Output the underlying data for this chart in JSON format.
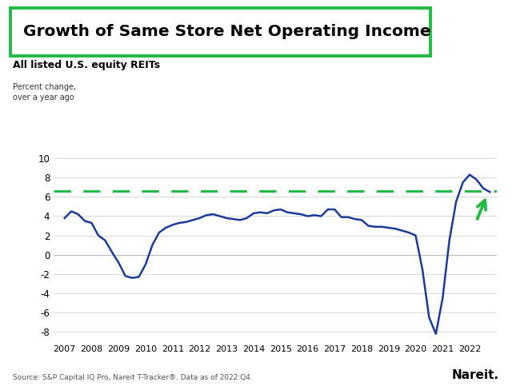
{
  "title": "Growth of Same Store Net Operating Income",
  "subtitle": "All listed U.S. equity REITs",
  "ylabel_line1": "Percent change,",
  "ylabel_line2": "over a year ago",
  "source": "Source: S&P Capital IQ Pro, Nareit T-Tracker®. Data as of 2022:Q4.",
  "nareit_label": "Nareit.",
  "dashed_line_y": 6.6,
  "ylim": [
    -9,
    11
  ],
  "yticks": [
    -8,
    -6,
    -4,
    -2,
    0,
    2,
    4,
    6,
    8,
    10
  ],
  "title_box_color": "#22bb44",
  "line_color": "#1a3a9e",
  "dashed_color": "#22bb44",
  "arrow_color": "#22bb44",
  "background_color": "#ffffff",
  "x_data": [
    2007.0,
    2007.25,
    2007.5,
    2007.75,
    2008.0,
    2008.25,
    2008.5,
    2008.75,
    2009.0,
    2009.25,
    2009.5,
    2009.75,
    2010.0,
    2010.25,
    2010.5,
    2010.75,
    2011.0,
    2011.25,
    2011.5,
    2011.75,
    2012.0,
    2012.25,
    2012.5,
    2012.75,
    2013.0,
    2013.25,
    2013.5,
    2013.75,
    2014.0,
    2014.25,
    2014.5,
    2014.75,
    2015.0,
    2015.25,
    2015.5,
    2015.75,
    2016.0,
    2016.25,
    2016.5,
    2016.75,
    2017.0,
    2017.25,
    2017.5,
    2017.75,
    2018.0,
    2018.25,
    2018.5,
    2018.75,
    2019.0,
    2019.25,
    2019.5,
    2019.75,
    2020.0,
    2020.25,
    2020.5,
    2020.75,
    2021.0,
    2021.25,
    2021.5,
    2021.75,
    2022.0,
    2022.25,
    2022.5,
    2022.75
  ],
  "y_data": [
    3.8,
    4.5,
    4.2,
    3.5,
    3.3,
    2.0,
    1.5,
    0.3,
    -0.8,
    -2.2,
    -2.4,
    -2.3,
    -1.0,
    1.0,
    2.3,
    2.8,
    3.1,
    3.3,
    3.4,
    3.6,
    3.8,
    4.1,
    4.2,
    4.0,
    3.8,
    3.7,
    3.6,
    3.8,
    4.3,
    4.4,
    4.3,
    4.6,
    4.7,
    4.4,
    4.3,
    4.2,
    4.0,
    4.1,
    4.0,
    4.7,
    4.7,
    3.9,
    3.9,
    3.7,
    3.6,
    3.0,
    2.9,
    2.9,
    2.8,
    2.7,
    2.5,
    2.3,
    2.0,
    -1.5,
    -6.5,
    -8.2,
    -4.5,
    1.5,
    5.5,
    7.5,
    8.3,
    7.8,
    6.9,
    6.5
  ],
  "xtick_years": [
    2007,
    2008,
    2009,
    2010,
    2011,
    2012,
    2013,
    2014,
    2015,
    2016,
    2017,
    2018,
    2019,
    2020,
    2021,
    2022
  ]
}
